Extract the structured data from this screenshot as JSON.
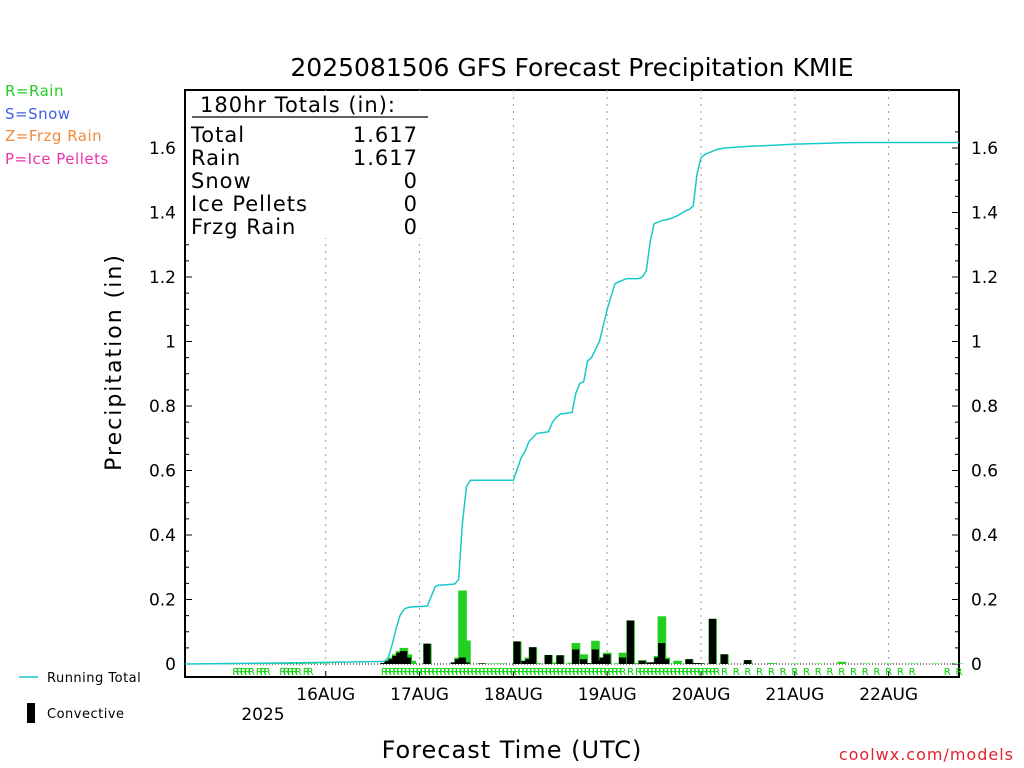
{
  "chart_data": {
    "type": "bar",
    "title": "2025081506 GFS Forecast Precipitation KMIE",
    "xlabel": "Forecast Time (UTC)",
    "ylabel": "Precipitation (in)",
    "ylim": [
      0,
      1.7
    ],
    "yticks": [
      0,
      0.2,
      0.4,
      0.6,
      0.8,
      1,
      1.2,
      1.4,
      1.6
    ],
    "ytick_labels": [
      "0",
      "0.2",
      "0.4",
      "0.6",
      "0.8",
      "1",
      "1.2",
      "1.4",
      "1.6"
    ],
    "x_unit": "hours since 2025-08-15 06 UTC",
    "x_tick_hours": [
      18,
      42,
      66,
      90,
      114,
      138,
      162
    ],
    "x_tick_labels": [
      "16AUG",
      "17AUG",
      "18AUG",
      "19AUG",
      "20AUG",
      "21AUG",
      "22AUG"
    ],
    "x_year_label": "2025",
    "xlim": [
      -18,
      180
    ],
    "grid": "vertical dotted",
    "colors": {
      "running_total": "#19c9c9",
      "rain": "#22d022",
      "convective": "#000000",
      "snow": "#3f5fe0",
      "frzg_rain": "#f08a3c",
      "ice_pellets": "#ee33aa",
      "credit": "#e0232e"
    },
    "series": [
      {
        "name": "Running Total",
        "type": "line",
        "x": [
          -18,
          6,
          18,
          33,
          34,
          35,
          36,
          37,
          38,
          39,
          40,
          42,
          44,
          45,
          46,
          47,
          48,
          51,
          52,
          53,
          54,
          55,
          56,
          57,
          58,
          59,
          62,
          66,
          68,
          69,
          70,
          72,
          75,
          76,
          77,
          78,
          81,
          82,
          83,
          84,
          85,
          86,
          87,
          88,
          90,
          92,
          93,
          94,
          95,
          96,
          98,
          99,
          100,
          101,
          102,
          104,
          106,
          107,
          108,
          110,
          111,
          112,
          113,
          114,
          115,
          116,
          117,
          118,
          120,
          126,
          132,
          138,
          144,
          150,
          156,
          162,
          168,
          174,
          180
        ],
        "values": [
          0,
          0.003,
          0.005,
          0.008,
          0.02,
          0.06,
          0.11,
          0.15,
          0.17,
          0.175,
          0.177,
          0.178,
          0.18,
          0.21,
          0.24,
          0.245,
          0.245,
          0.248,
          0.262,
          0.44,
          0.55,
          0.57,
          0.57,
          0.57,
          0.57,
          0.57,
          0.57,
          0.57,
          0.64,
          0.66,
          0.69,
          0.715,
          0.72,
          0.75,
          0.765,
          0.775,
          0.78,
          0.84,
          0.87,
          0.875,
          0.94,
          0.95,
          0.975,
          1.0,
          1.1,
          1.18,
          1.185,
          1.19,
          1.195,
          1.195,
          1.195,
          1.2,
          1.22,
          1.31,
          1.365,
          1.375,
          1.38,
          1.385,
          1.39,
          1.405,
          1.41,
          1.42,
          1.52,
          1.57,
          1.58,
          1.585,
          1.59,
          1.595,
          1.6,
          1.605,
          1.608,
          1.612,
          1.614,
          1.616,
          1.617,
          1.617,
          1.617,
          1.617,
          1.617
        ]
      },
      {
        "name": "Rain",
        "type": "bar",
        "x": [
          -3,
          0,
          3,
          6,
          9,
          12,
          15,
          18,
          33,
          34,
          35,
          36,
          37,
          38,
          39,
          40,
          44,
          51,
          52,
          53,
          54,
          58,
          59,
          60,
          62,
          63,
          67,
          69,
          70,
          71,
          72,
          75,
          76,
          78,
          81,
          82,
          84,
          85,
          87,
          88,
          89,
          90,
          93,
          94,
          96,
          97,
          99,
          101,
          102,
          103,
          104,
          105,
          108,
          111,
          112,
          113,
          114,
          117,
          120,
          126,
          132,
          138,
          144,
          150,
          156,
          162,
          168,
          174,
          180
        ],
        "values": [
          0,
          0,
          0.001,
          0,
          0,
          0.001,
          0,
          0,
          0.003,
          0.01,
          0.02,
          0.03,
          0.04,
          0.05,
          0.03,
          0.01,
          0.063,
          0.005,
          0.02,
          0.228,
          0.073,
          0.002,
          0.001,
          0,
          0,
          0.002,
          0.07,
          0.01,
          0.02,
          0.052,
          0.003,
          0.028,
          0.005,
          0.027,
          0.004,
          0.065,
          0.03,
          0.003,
          0.072,
          0.015,
          0.02,
          0.035,
          0.002,
          0.035,
          0.135,
          0.003,
          0.012,
          0.005,
          0.005,
          0.025,
          0.148,
          0.02,
          0.01,
          0.015,
          0.003,
          0.003,
          0.002,
          0.14,
          0.03,
          0.012,
          0.003,
          0.001,
          0.001,
          0.007,
          0.001,
          0.001,
          0,
          0,
          0.001
        ]
      },
      {
        "name": "Convective",
        "type": "bar",
        "x": [
          33,
          34,
          35,
          36,
          37,
          38,
          39,
          44,
          51,
          52,
          53,
          54,
          58,
          67,
          69,
          70,
          71,
          75,
          78,
          82,
          84,
          85,
          87,
          88,
          89,
          90,
          94,
          96,
          99,
          101,
          102,
          103,
          104,
          105,
          111,
          112,
          113,
          114,
          117,
          120,
          126
        ],
        "values": [
          0.003,
          0.01,
          0.015,
          0.025,
          0.035,
          0.04,
          0.02,
          0.063,
          0.005,
          0.015,
          0.02,
          0.005,
          0.002,
          0.07,
          0.01,
          0.015,
          0.052,
          0.028,
          0.027,
          0.045,
          0.015,
          0.003,
          0.045,
          0.01,
          0.02,
          0.03,
          0.02,
          0.135,
          0.01,
          0.005,
          0.005,
          0.02,
          0.065,
          0.015,
          0.015,
          0.003,
          0.003,
          0.002,
          0.14,
          0.03,
          0.012
        ]
      }
    ],
    "ptype_labels": {
      "text": "R",
      "hours": [
        -5,
        -4,
        -3,
        -2,
        -1,
        1,
        2,
        3,
        7,
        8,
        9,
        10,
        11,
        13,
        14,
        33,
        34,
        35,
        36,
        37,
        38,
        39,
        40,
        41,
        42,
        43,
        44,
        45,
        46,
        47,
        48,
        49,
        50,
        51,
        52,
        53,
        54,
        55,
        56,
        57,
        58,
        59,
        60,
        61,
        62,
        63,
        64,
        65,
        66,
        67,
        68,
        69,
        70,
        71,
        72,
        73,
        74,
        75,
        76,
        77,
        78,
        79,
        80,
        81,
        82,
        83,
        84,
        85,
        86,
        87,
        88,
        89,
        90,
        91,
        92,
        93,
        94,
        96,
        98,
        99,
        100,
        101,
        102,
        103,
        104,
        105,
        106,
        107,
        108,
        109,
        110,
        111,
        112,
        113,
        114,
        115,
        116,
        117,
        118,
        120,
        123,
        126,
        129,
        132,
        135,
        138,
        141,
        144,
        147,
        150,
        153,
        156,
        159,
        162,
        165,
        168,
        177,
        180
      ]
    },
    "legend_ptypes": [
      "R=Rain",
      "S=Snow",
      "Z=Frzg Rain",
      "P=Ice Pellets"
    ],
    "legend_lines": [
      "Running Total",
      "Convective"
    ],
    "totals_box": {
      "title": "180hr Totals (in):",
      "rows": [
        {
          "label": "Total",
          "value": "1.617"
        },
        {
          "label": "Rain",
          "value": "1.617"
        },
        {
          "label": "Snow",
          "value": "0"
        },
        {
          "label": "Ice Pellets",
          "value": "0"
        },
        {
          "label": "Frzg Rain",
          "value": "0"
        }
      ]
    },
    "credit": "coolwx.com/models"
  }
}
